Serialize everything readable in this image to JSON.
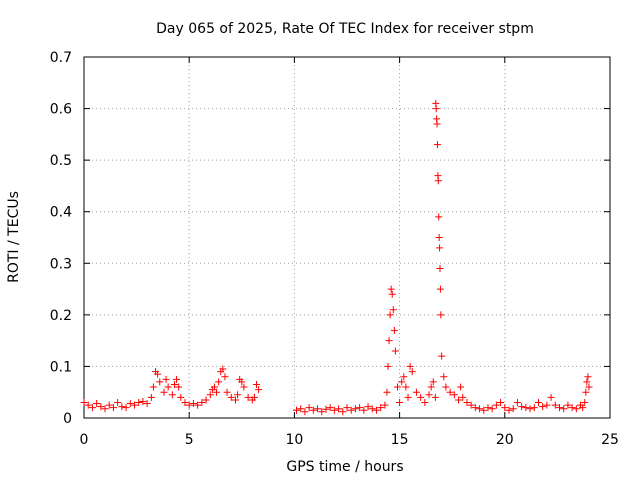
{
  "chart_data": {
    "type": "scatter",
    "title": "Day 065 of 2025, Rate Of TEC Index for receiver stpm",
    "xlabel": "GPS time / hours",
    "ylabel": "ROTI / TECUs",
    "xlim": [
      0,
      25
    ],
    "ylim": [
      0,
      0.7
    ],
    "xticks": [
      0,
      5,
      10,
      15,
      20,
      25
    ],
    "yticks": [
      0,
      0.1,
      0.2,
      0.3,
      0.4,
      0.5,
      0.6,
      0.7
    ],
    "xtick_labels": [
      "0",
      "5",
      "10",
      "15",
      "20",
      "25"
    ],
    "ytick_labels": [
      "0",
      "0.1",
      "0.2",
      "0.3",
      "0.4",
      "0.5",
      "0.6",
      "0.7"
    ],
    "grid": true,
    "marker": "+",
    "color": "#ff0000",
    "series": [
      {
        "name": "ROTI",
        "x": [
          0.0,
          0.2,
          0.4,
          0.6,
          0.8,
          1.0,
          1.2,
          1.4,
          1.6,
          1.8,
          2.0,
          2.2,
          2.4,
          2.6,
          2.8,
          3.0,
          3.2,
          3.3,
          3.4,
          3.5,
          3.6,
          3.8,
          3.9,
          4.0,
          4.2,
          4.3,
          4.4,
          4.5,
          4.6,
          4.8,
          5.0,
          5.2,
          5.4,
          5.6,
          5.8,
          6.0,
          6.1,
          6.2,
          6.3,
          6.4,
          6.5,
          6.6,
          6.7,
          6.8,
          7.0,
          7.2,
          7.3,
          7.4,
          7.5,
          7.6,
          7.8,
          8.0,
          8.1,
          8.2,
          8.3,
          10.1,
          10.3,
          10.5,
          10.7,
          10.9,
          11.1,
          11.3,
          11.5,
          11.7,
          11.9,
          12.1,
          12.3,
          12.5,
          12.7,
          12.9,
          13.1,
          13.3,
          13.5,
          13.7,
          13.9,
          14.1,
          14.3,
          14.4,
          14.45,
          14.5,
          14.55,
          14.6,
          14.65,
          14.7,
          14.75,
          14.8,
          14.9,
          15.0,
          15.1,
          15.2,
          15.3,
          15.4,
          15.5,
          15.6,
          15.8,
          16.0,
          16.2,
          16.4,
          16.5,
          16.6,
          16.7,
          16.72,
          16.74,
          16.76,
          16.78,
          16.8,
          16.82,
          16.84,
          16.86,
          16.88,
          16.9,
          16.92,
          16.94,
          16.96,
          17.0,
          17.1,
          17.2,
          17.4,
          17.6,
          17.8,
          17.9,
          18.0,
          18.2,
          18.4,
          18.6,
          18.8,
          19.0,
          19.2,
          19.4,
          19.6,
          19.8,
          20.0,
          20.2,
          20.4,
          20.6,
          20.8,
          21.0,
          21.2,
          21.4,
          21.6,
          21.8,
          22.0,
          22.2,
          22.4,
          22.6,
          22.8,
          23.0,
          23.2,
          23.4,
          23.6,
          23.7,
          23.8,
          23.85,
          23.9,
          23.95,
          24.0
        ],
        "y": [
          0.03,
          0.025,
          0.02,
          0.028,
          0.022,
          0.018,
          0.025,
          0.02,
          0.03,
          0.022,
          0.02,
          0.028,
          0.025,
          0.03,
          0.032,
          0.028,
          0.04,
          0.06,
          0.09,
          0.085,
          0.07,
          0.05,
          0.075,
          0.06,
          0.045,
          0.065,
          0.075,
          0.06,
          0.04,
          0.03,
          0.025,
          0.028,
          0.025,
          0.03,
          0.035,
          0.045,
          0.055,
          0.06,
          0.05,
          0.07,
          0.09,
          0.095,
          0.08,
          0.05,
          0.04,
          0.035,
          0.045,
          0.075,
          0.07,
          0.06,
          0.04,
          0.035,
          0.04,
          0.065,
          0.055,
          0.015,
          0.018,
          0.012,
          0.02,
          0.015,
          0.018,
          0.012,
          0.017,
          0.02,
          0.015,
          0.018,
          0.012,
          0.02,
          0.015,
          0.018,
          0.02,
          0.015,
          0.022,
          0.018,
          0.015,
          0.02,
          0.025,
          0.05,
          0.1,
          0.15,
          0.2,
          0.25,
          0.24,
          0.21,
          0.17,
          0.13,
          0.06,
          0.03,
          0.07,
          0.08,
          0.06,
          0.04,
          0.1,
          0.09,
          0.05,
          0.04,
          0.03,
          0.045,
          0.06,
          0.07,
          0.04,
          0.61,
          0.6,
          0.58,
          0.57,
          0.53,
          0.47,
          0.46,
          0.39,
          0.35,
          0.33,
          0.29,
          0.25,
          0.2,
          0.12,
          0.08,
          0.06,
          0.05,
          0.045,
          0.035,
          0.06,
          0.04,
          0.03,
          0.025,
          0.02,
          0.018,
          0.015,
          0.02,
          0.018,
          0.025,
          0.03,
          0.02,
          0.015,
          0.018,
          0.03,
          0.022,
          0.02,
          0.018,
          0.02,
          0.03,
          0.022,
          0.025,
          0.04,
          0.025,
          0.02,
          0.018,
          0.025,
          0.02,
          0.018,
          0.025,
          0.02,
          0.03,
          0.05,
          0.07,
          0.08,
          0.06
        ]
      }
    ]
  }
}
